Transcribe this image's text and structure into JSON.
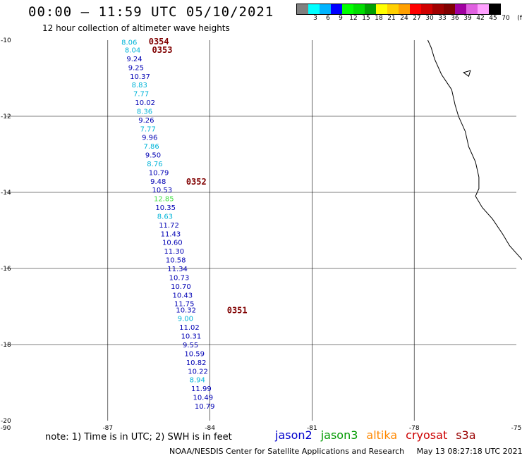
{
  "header": {
    "title": "00:00 – 11:59 UTC 05/10/2021",
    "subtitle": "12 hour collection of altimeter wave heights"
  },
  "legend": {
    "unit": "(ft)",
    "swatches": [
      {
        "label": "",
        "color": "#808080"
      },
      {
        "label": "3",
        "color": "#00ffff"
      },
      {
        "label": "6",
        "color": "#00b4ff"
      },
      {
        "label": "9",
        "color": "#0000ff"
      },
      {
        "label": "12",
        "color": "#00ff00"
      },
      {
        "label": "15",
        "color": "#00dd00"
      },
      {
        "label": "18",
        "color": "#00a000"
      },
      {
        "label": "21",
        "color": "#ffff00"
      },
      {
        "label": "24",
        "color": "#ffd000"
      },
      {
        "label": "27",
        "color": "#ffa000"
      },
      {
        "label": "30",
        "color": "#ff0000"
      },
      {
        "label": "33",
        "color": "#d00000"
      },
      {
        "label": "36",
        "color": "#a00000"
      },
      {
        "label": "39",
        "color": "#800000"
      },
      {
        "label": "42",
        "color": "#a000a0"
      },
      {
        "label": "45",
        "color": "#e060e0"
      },
      {
        "label": "70",
        "color": "#ffa0ff"
      },
      {
        "label": "",
        "color": "#000000"
      }
    ]
  },
  "chart_data": {
    "type": "scatter",
    "x_ticks": [
      "-90",
      "-87",
      "-84",
      "-81",
      "-78",
      "-75"
    ],
    "y_ticks": [
      "-10",
      "-12",
      "-14",
      "-16",
      "-18",
      "-20"
    ],
    "xlim": [
      -90,
      -75
    ],
    "ylim": [
      -20,
      -10
    ],
    "measurements": [
      {
        "label": "8.06",
        "lon": -86.6,
        "lat": -10.05,
        "color": "#00b4d8"
      },
      {
        "label": "8.04",
        "lon": -86.5,
        "lat": -10.25,
        "color": "#00b4d8"
      },
      {
        "label": "9.24",
        "lon": -86.45,
        "lat": -10.48,
        "color": "#0000b4"
      },
      {
        "label": "9.25",
        "lon": -86.4,
        "lat": -10.71,
        "color": "#0000b4"
      },
      {
        "label": "10.37",
        "lon": -86.35,
        "lat": -10.94,
        "color": "#0000b4"
      },
      {
        "label": "8.83",
        "lon": -86.3,
        "lat": -11.17,
        "color": "#00b4d8"
      },
      {
        "label": "7.77",
        "lon": -86.25,
        "lat": -11.4,
        "color": "#00b4d8"
      },
      {
        "label": "10.02",
        "lon": -86.2,
        "lat": -11.63,
        "color": "#0000b4"
      },
      {
        "label": "8.36",
        "lon": -86.15,
        "lat": -11.86,
        "color": "#00b4d8"
      },
      {
        "label": "9.26",
        "lon": -86.1,
        "lat": -12.09,
        "color": "#0000b4"
      },
      {
        "label": "7.77",
        "lon": -86.05,
        "lat": -12.32,
        "color": "#00b4d8"
      },
      {
        "label": "9.96",
        "lon": -86.0,
        "lat": -12.55,
        "color": "#0000b4"
      },
      {
        "label": "7.86",
        "lon": -85.95,
        "lat": -12.78,
        "color": "#00b4d8"
      },
      {
        "label": "9.50",
        "lon": -85.9,
        "lat": -13.01,
        "color": "#0000b4"
      },
      {
        "label": "8.76",
        "lon": -85.85,
        "lat": -13.24,
        "color": "#00b4d8"
      },
      {
        "label": "10.79",
        "lon": -85.8,
        "lat": -13.47,
        "color": "#0000b4"
      },
      {
        "label": "9.48",
        "lon": -85.75,
        "lat": -13.7,
        "color": "#0000b4"
      },
      {
        "label": "10.53",
        "lon": -85.7,
        "lat": -13.93,
        "color": "#0000b4"
      },
      {
        "label": "12.85",
        "lon": -85.65,
        "lat": -14.16,
        "color": "#40e040"
      },
      {
        "label": "10.35",
        "lon": -85.6,
        "lat": -14.39,
        "color": "#0000b4"
      },
      {
        "label": "8.63",
        "lon": -85.55,
        "lat": -14.62,
        "color": "#00b4d8"
      },
      {
        "label": "11.72",
        "lon": -85.5,
        "lat": -14.85,
        "color": "#0000b4"
      },
      {
        "label": "11.43",
        "lon": -85.45,
        "lat": -15.08,
        "color": "#0000b4"
      },
      {
        "label": "10.60",
        "lon": -85.4,
        "lat": -15.31,
        "color": "#0000b4"
      },
      {
        "label": "11.30",
        "lon": -85.35,
        "lat": -15.54,
        "color": "#0000b4"
      },
      {
        "label": "10.58",
        "lon": -85.3,
        "lat": -15.77,
        "color": "#0000b4"
      },
      {
        "label": "11.34",
        "lon": -85.25,
        "lat": -16.0,
        "color": "#0000b4"
      },
      {
        "label": "10.73",
        "lon": -85.2,
        "lat": -16.23,
        "color": "#0000b4"
      },
      {
        "label": "10.70",
        "lon": -85.15,
        "lat": -16.46,
        "color": "#0000b4"
      },
      {
        "label": "10.43",
        "lon": -85.1,
        "lat": -16.69,
        "color": "#0000b4"
      },
      {
        "label": "11.75",
        "lon": -85.05,
        "lat": -16.92,
        "color": "#0000b4"
      },
      {
        "label": "10.32",
        "lon": -85.0,
        "lat": -17.08,
        "color": "#0000b4"
      },
      {
        "label": "9.00",
        "lon": -84.95,
        "lat": -17.31,
        "color": "#00b4d8"
      },
      {
        "label": "11.02",
        "lon": -84.9,
        "lat": -17.54,
        "color": "#0000b4"
      },
      {
        "label": "10.31",
        "lon": -84.85,
        "lat": -17.77,
        "color": "#0000b4"
      },
      {
        "label": "9.55",
        "lon": -84.8,
        "lat": -18.0,
        "color": "#0000b4"
      },
      {
        "label": "10.59",
        "lon": -84.75,
        "lat": -18.23,
        "color": "#0000b4"
      },
      {
        "label": "10.82",
        "lon": -84.7,
        "lat": -18.46,
        "color": "#0000b4"
      },
      {
        "label": "10.22",
        "lon": -84.65,
        "lat": -18.69,
        "color": "#0000b4"
      },
      {
        "label": "8.94",
        "lon": -84.6,
        "lat": -18.92,
        "color": "#00b4d8"
      },
      {
        "label": "11.99",
        "lon": -84.55,
        "lat": -19.15,
        "color": "#0000b4"
      },
      {
        "label": "10.49",
        "lon": -84.5,
        "lat": -19.38,
        "color": "#0000b4"
      },
      {
        "label": "10.79",
        "lon": -84.45,
        "lat": -19.61,
        "color": "#0000b4"
      }
    ],
    "pass_times": [
      {
        "label": "0354",
        "lon": -85.8,
        "lat": -10.02
      },
      {
        "label": "0353",
        "lon": -85.7,
        "lat": -10.24
      },
      {
        "label": "0352",
        "lon": -84.7,
        "lat": -13.7
      },
      {
        "label": "0351",
        "lon": -83.5,
        "lat": -17.08
      }
    ],
    "pass_time_color": "#800000",
    "coastline": [
      [
        -77.6,
        -10.0
      ],
      [
        -77.5,
        -10.2
      ],
      [
        -77.4,
        -10.5
      ],
      [
        -77.2,
        -10.9
      ],
      [
        -76.9,
        -11.3
      ],
      [
        -76.8,
        -11.7
      ],
      [
        -76.7,
        -12.0
      ],
      [
        -76.5,
        -12.4
      ],
      [
        -76.4,
        -12.8
      ],
      [
        -76.2,
        -13.2
      ],
      [
        -76.1,
        -13.6
      ],
      [
        -76.1,
        -13.9
      ],
      [
        -76.2,
        -14.1
      ],
      [
        -76.0,
        -14.4
      ],
      [
        -75.7,
        -14.7
      ],
      [
        -75.4,
        -15.1
      ],
      [
        -75.2,
        -15.4
      ],
      [
        -75.0,
        -15.6
      ],
      [
        -74.8,
        -15.8
      ]
    ],
    "island": [
      [
        -76.55,
        -10.85
      ],
      [
        -76.35,
        -10.8
      ],
      [
        -76.4,
        -10.95
      ]
    ]
  },
  "footer": {
    "note": "note: 1) Time is in UTC; 2) SWH is in feet",
    "credit": "NOAA/NESDIS Center for Satellite Applications and Research",
    "timestamp": "May 13 08:27:18 UTC 2021",
    "satellites": [
      {
        "name": "jason2",
        "color": "#0000cc"
      },
      {
        "name": "jason3",
        "color": "#009900"
      },
      {
        "name": "altika",
        "color": "#ff8800"
      },
      {
        "name": "cryosat",
        "color": "#cc0000"
      },
      {
        "name": "s3a",
        "color": "#990000"
      }
    ]
  }
}
